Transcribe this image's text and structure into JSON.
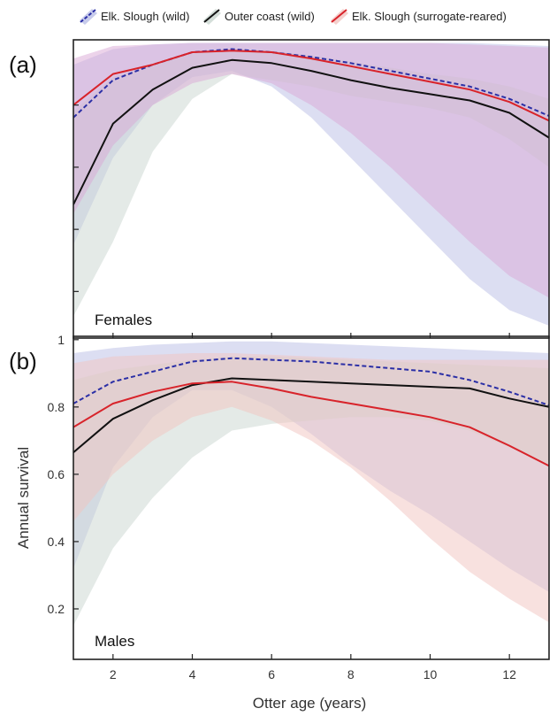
{
  "colors": {
    "elk_wild": "#2b2fa6",
    "outer_coast": "#111111",
    "elk_surrogate": "#d8232a",
    "band_elk_wild": "#b9bee6",
    "band_outer_coast": "#c9d6cf",
    "band_elk_surrogate": "#d9a8d6",
    "band_elk_surrogate_males": "#f2c4c0"
  },
  "legend": {
    "items": [
      {
        "label": "Elk. Slough (wild)",
        "series": "elk_wild"
      },
      {
        "label": "Outer coast (wild)",
        "series": "outer_coast"
      },
      {
        "label": "Elk. Slough (surrogate-reared)",
        "series": "elk_surrogate"
      }
    ],
    "placement": "top"
  },
  "x_axis_title": "Otter age (years)",
  "chart_data": [
    {
      "type": "line",
      "panel_letter": "(a)",
      "panel_label": "Females",
      "ylabel": "",
      "show_y_tick_labels": false,
      "xlim": [
        1,
        13
      ],
      "ylim": [
        0.05,
        1.01
      ],
      "x_ticks": [
        2,
        4,
        6,
        8,
        10,
        12
      ],
      "y_ticks": [
        0.2,
        0.4,
        0.6,
        0.8
      ],
      "x": [
        1,
        2,
        3,
        4,
        5,
        6,
        7,
        8,
        9,
        10,
        11,
        12,
        13
      ],
      "series": [
        {
          "name": "Elk. Slough (wild)",
          "key": "elk_wild",
          "style": "dashed",
          "values": [
            0.76,
            0.88,
            0.93,
            0.97,
            0.98,
            0.97,
            0.955,
            0.935,
            0.91,
            0.885,
            0.86,
            0.82,
            0.765
          ],
          "lower": [
            0.35,
            0.63,
            0.8,
            0.89,
            0.91,
            0.86,
            0.76,
            0.63,
            0.5,
            0.37,
            0.24,
            0.14,
            0.09
          ],
          "upper": [
            0.93,
            0.98,
            0.995,
            1.0,
            1.0,
            1.0,
            1.0,
            1.0,
            1.0,
            1.0,
            1.0,
            0.995,
            0.99
          ]
        },
        {
          "name": "Outer coast (wild)",
          "key": "outer_coast",
          "style": "solid",
          "values": [
            0.48,
            0.74,
            0.85,
            0.92,
            0.945,
            0.935,
            0.91,
            0.88,
            0.855,
            0.835,
            0.815,
            0.775,
            0.695
          ],
          "lower": [
            0.12,
            0.36,
            0.65,
            0.82,
            0.9,
            0.88,
            0.86,
            0.83,
            0.81,
            0.79,
            0.76,
            0.69,
            0.6
          ],
          "upper": [
            0.78,
            0.89,
            0.93,
            0.965,
            0.98,
            0.975,
            0.96,
            0.94,
            0.92,
            0.9,
            0.885,
            0.86,
            0.82
          ]
        },
        {
          "name": "Elk. Slough (surrogate-reared)",
          "key": "elk_surrogate",
          "style": "solid",
          "values": [
            0.8,
            0.9,
            0.93,
            0.97,
            0.975,
            0.97,
            0.95,
            0.925,
            0.9,
            0.875,
            0.85,
            0.81,
            0.75
          ],
          "lower": [
            0.45,
            0.67,
            0.8,
            0.87,
            0.9,
            0.87,
            0.8,
            0.71,
            0.6,
            0.48,
            0.36,
            0.25,
            0.18
          ],
          "upper": [
            0.95,
            0.99,
            0.995,
            1.0,
            1.0,
            1.0,
            1.0,
            1.0,
            1.0,
            1.0,
            0.995,
            0.99,
            0.985
          ]
        }
      ]
    },
    {
      "type": "line",
      "panel_letter": "(b)",
      "panel_label": "Males",
      "ylabel": "Annual survival",
      "show_y_tick_labels": true,
      "xlim": [
        1,
        13
      ],
      "ylim": [
        0.05,
        1.01
      ],
      "x_ticks": [
        2,
        4,
        6,
        8,
        10,
        12
      ],
      "y_ticks": [
        0.2,
        0.4,
        0.6,
        0.8,
        1
      ],
      "y_tick_labels": [
        "0.2",
        "0.4",
        "0.6",
        "0.8",
        "1"
      ],
      "x": [
        1,
        2,
        3,
        4,
        5,
        6,
        7,
        8,
        9,
        10,
        11,
        12,
        13
      ],
      "series": [
        {
          "name": "Elk. Slough (wild)",
          "key": "elk_wild",
          "style": "dashed",
          "values": [
            0.81,
            0.875,
            0.905,
            0.935,
            0.945,
            0.94,
            0.935,
            0.925,
            0.915,
            0.905,
            0.88,
            0.845,
            0.805
          ],
          "lower": [
            0.32,
            0.62,
            0.77,
            0.85,
            0.85,
            0.8,
            0.72,
            0.63,
            0.55,
            0.48,
            0.4,
            0.32,
            0.25
          ],
          "upper": [
            0.96,
            0.975,
            0.985,
            0.99,
            0.995,
            0.995,
            0.99,
            0.985,
            0.98,
            0.975,
            0.97,
            0.965,
            0.96
          ]
        },
        {
          "name": "Outer coast (wild)",
          "key": "outer_coast",
          "style": "solid",
          "values": [
            0.665,
            0.765,
            0.82,
            0.865,
            0.885,
            0.88,
            0.875,
            0.87,
            0.865,
            0.86,
            0.855,
            0.825,
            0.8
          ],
          "lower": [
            0.15,
            0.38,
            0.53,
            0.65,
            0.73,
            0.75,
            0.76,
            0.77,
            0.77,
            0.76,
            0.73,
            0.68,
            0.63
          ],
          "upper": [
            0.88,
            0.91,
            0.925,
            0.94,
            0.95,
            0.95,
            0.945,
            0.94,
            0.935,
            0.93,
            0.925,
            0.92,
            0.915
          ]
        },
        {
          "name": "Elk. Slough (surrogate-reared)",
          "key": "elk_surrogate",
          "style": "solid",
          "values": [
            0.74,
            0.81,
            0.845,
            0.87,
            0.875,
            0.855,
            0.83,
            0.81,
            0.79,
            0.77,
            0.74,
            0.685,
            0.625
          ],
          "lower": [
            0.46,
            0.6,
            0.7,
            0.77,
            0.8,
            0.76,
            0.7,
            0.62,
            0.52,
            0.41,
            0.31,
            0.23,
            0.16
          ],
          "upper": [
            0.93,
            0.95,
            0.955,
            0.96,
            0.96,
            0.955,
            0.95,
            0.945,
            0.94,
            0.94,
            0.94,
            0.94,
            0.94
          ]
        }
      ]
    }
  ]
}
